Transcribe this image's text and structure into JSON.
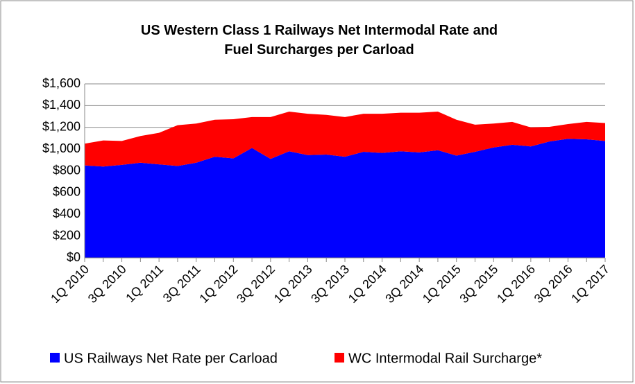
{
  "chart_data": {
    "type": "stacked_area",
    "title": "US Western Class 1 Railways Net Intermodal Rate and Fuel Surcharges per Carload",
    "categories": [
      "1Q 2010",
      null,
      "3Q 2010",
      null,
      "1Q 2011",
      null,
      "3Q 2011",
      null,
      "1Q 2012",
      null,
      "3Q 2012",
      null,
      "1Q 2013",
      null,
      "3Q 2013",
      null,
      "1Q 2014",
      null,
      "3Q 2014",
      null,
      "1Q 2015",
      null,
      "3Q 2015",
      null,
      "1Q 2016",
      null,
      "3Q 2016",
      null,
      "1Q 2017"
    ],
    "series": [
      {
        "name": "US Railways Net Rate per Carload",
        "color": "#0000ff",
        "values": [
          850,
          840,
          855,
          875,
          860,
          845,
          875,
          930,
          915,
          1010,
          910,
          980,
          945,
          950,
          930,
          975,
          965,
          980,
          970,
          990,
          940,
          975,
          1015,
          1040,
          1025,
          1070,
          1095,
          1090,
          1075
        ]
      },
      {
        "name": "WC Intermodal Rail Surcharge*",
        "color": "#ff0000",
        "values": [
          200,
          240,
          220,
          245,
          290,
          375,
          360,
          340,
          360,
          285,
          385,
          365,
          380,
          365,
          365,
          350,
          360,
          355,
          365,
          355,
          330,
          250,
          220,
          210,
          175,
          135,
          135,
          160,
          165
        ]
      }
    ],
    "ylim": [
      0,
      1600
    ],
    "yticks": [
      {
        "value": 0,
        "label": "$0"
      },
      {
        "value": 200,
        "label": "$200"
      },
      {
        "value": 400,
        "label": "$400"
      },
      {
        "value": 600,
        "label": "$600"
      },
      {
        "value": 800,
        "label": "$800"
      },
      {
        "value": 1000,
        "label": "$1,000"
      },
      {
        "value": 1200,
        "label": "$1,200"
      },
      {
        "value": 1400,
        "label": "$1,400"
      },
      {
        "value": 1600,
        "label": "$1,600"
      }
    ],
    "grid": true,
    "legend": "bottom"
  }
}
